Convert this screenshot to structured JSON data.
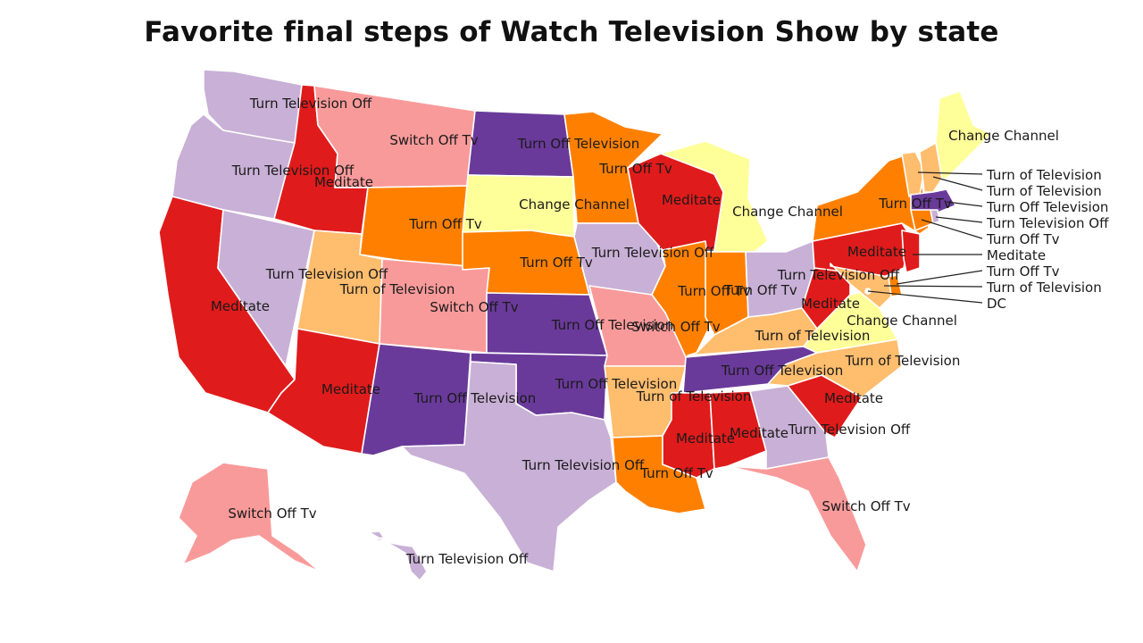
{
  "title": "Favorite final steps of Watch Television Show by state",
  "colors": {
    "Turn Television Off": "#c9b0d6",
    "Meditate": "#e01b1b",
    "Switch Off Tv": "#f99a9a",
    "Turn Off Television": "#6a3a9a",
    "Turn Off Tv": "#ff8000",
    "Change Channel": "#ffff99",
    "Turn of Television": "#ffbd6e"
  },
  "states": {
    "WA": "Turn Television Off",
    "OR": "Turn Television Off",
    "CA": "Meditate",
    "NV": "Turn Television Off",
    "ID": "Meditate",
    "MT": "Switch Off Tv",
    "WY": "Turn Off Tv",
    "UT": "Turn of Television",
    "AZ": "Meditate",
    "CO": "Switch Off Tv",
    "NM": "Turn Off Television",
    "ND": "Turn Off Television",
    "SD": "Change Channel",
    "NE": "Turn Off Tv",
    "KS": "Turn Off Television",
    "OK": "Turn Off Television",
    "TX": "Turn Television Off",
    "MN": "Turn Off Tv",
    "IA": "Turn Television Off",
    "MO": "Switch Off Tv",
    "AR": "Turn of Television",
    "LA": "Turn Off Tv",
    "WI": "Meditate",
    "IL": "Turn Off Tv",
    "MI": "Change Channel",
    "IN": "Turn Off Tv",
    "OH": "Turn Television Off",
    "KY": "Turn of Television",
    "TN": "Turn Off Television",
    "MS": "Meditate",
    "AL": "Meditate",
    "GA": "Turn Television Off",
    "FL": "Switch Off Tv",
    "SC": "Meditate",
    "NC": "Turn of Television",
    "VA": "Change Channel",
    "WV": "Meditate",
    "PA": "Meditate",
    "NY": "Turn Off Tv",
    "ME": "Change Channel",
    "VT": "Turn of Television",
    "NH": "Turn of Television",
    "MA": "Turn Off Television",
    "RI": "Turn Television Off",
    "CT": "Turn Off Tv",
    "NJ": "Meditate",
    "DE": "Turn Off Tv",
    "MD": "Turn of Television",
    "DC": "DC",
    "AK": "Switch Off Tv",
    "HI": "Turn Television Off"
  }
}
